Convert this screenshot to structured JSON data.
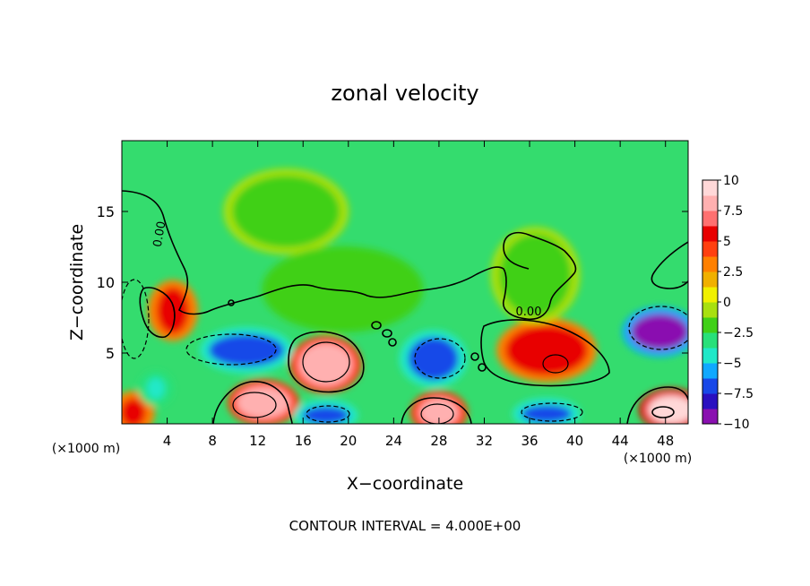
{
  "chart_data": {
    "type": "heatmap",
    "title": "zonal velocity",
    "xlabel": "X−coordinate",
    "ylabel": "Z−coordinate",
    "x_unit_left": "(×1000 m)",
    "x_unit_right": "(×1000 m)",
    "xlim": [
      0,
      50
    ],
    "ylim": [
      0,
      20
    ],
    "xticks": [
      4,
      8,
      12,
      16,
      20,
      24,
      28,
      32,
      36,
      40,
      44,
      48
    ],
    "xtick_labels": [
      "4",
      "8",
      "12",
      "16",
      "20",
      "24",
      "28",
      "32",
      "36",
      "40",
      "44",
      "48"
    ],
    "yticks": [
      5,
      10,
      15
    ],
    "ytick_labels": [
      "5",
      "10",
      "15"
    ],
    "footer": "CONTOUR INTERVAL = 4.000E+00",
    "contour_label": "0.00",
    "colorbar": {
      "min": -10,
      "max": 10,
      "tick_values": [
        10,
        7.5,
        5,
        2.5,
        0,
        -2.5,
        -5,
        -7.5,
        -10
      ],
      "tick_labels": [
        "10",
        "7.5",
        "5",
        "2.5",
        "0",
        "−2.5",
        "−5",
        "−7.5",
        "−10"
      ],
      "colors": [
        "#8a10b0",
        "#2a10c0",
        "#1848e8",
        "#10a8ff",
        "#20e8c8",
        "#28e07a",
        "#40d018",
        "#a8e010",
        "#f0f000",
        "#f0b000",
        "#ff8000",
        "#ff4010",
        "#e80000",
        "#ff7070",
        "#ffb0b0",
        "#ffd8d8"
      ]
    },
    "features": [
      {
        "x": 18,
        "y": 4.2,
        "value": 7.5
      },
      {
        "x": 12.5,
        "y": 1.5,
        "value": 7.5
      },
      {
        "x": 28,
        "y": 0.8,
        "value": 7.5
      },
      {
        "x": 4.5,
        "y": 8.0,
        "value": 5
      },
      {
        "x": 37.5,
        "y": 5.2,
        "value": 5
      },
      {
        "x": 48.5,
        "y": 1.0,
        "value": 10
      },
      {
        "x": 1.0,
        "y": 0.8,
        "value": 5
      },
      {
        "x": 11,
        "y": 5.2,
        "value": -7.5
      },
      {
        "x": 27.5,
        "y": 4.6,
        "value": -7.5
      },
      {
        "x": 47.5,
        "y": 6.5,
        "value": -10
      },
      {
        "x": 18,
        "y": 0.6,
        "value": -7.5
      },
      {
        "x": 37.5,
        "y": 0.7,
        "value": -7.5
      },
      {
        "x": 3.0,
        "y": 2.5,
        "value": -5
      },
      {
        "x": 14.5,
        "y": 15.0,
        "value": -1.5
      },
      {
        "x": 36.5,
        "y": 10.5,
        "value": -2
      },
      {
        "x": 19.5,
        "y": 9.5,
        "value": -2.5
      }
    ]
  }
}
